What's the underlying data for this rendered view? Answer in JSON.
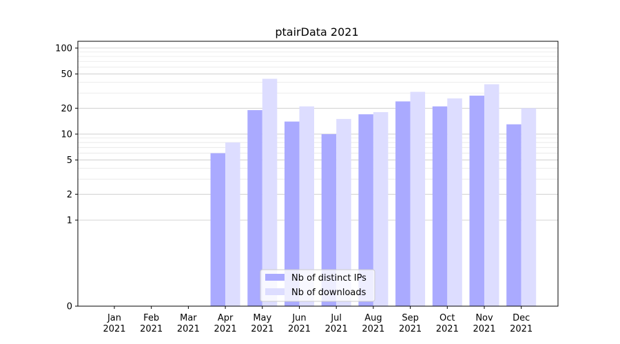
{
  "chart_data": {
    "type": "bar",
    "title": "ptairData 2021",
    "xlabel": "",
    "ylabel": "",
    "y_scale": "symlog",
    "ylim": [
      0,
      120
    ],
    "y_ticks": [
      0,
      1,
      2,
      5,
      10,
      20,
      50,
      100
    ],
    "y_tick_labels": [
      "0",
      "1",
      "2",
      "5",
      "10",
      "20",
      "50",
      "100"
    ],
    "grid": true,
    "legend_position": "bottom-center",
    "categories": [
      "Jan\n2021",
      "Feb\n2021",
      "Mar\n2021",
      "Apr\n2021",
      "May\n2021",
      "Jun\n2021",
      "Jul\n2021",
      "Aug\n2021",
      "Sep\n2021",
      "Oct\n2021",
      "Nov\n2021",
      "Dec\n2021"
    ],
    "series": [
      {
        "name": "Nb of distinct IPs",
        "color": "#aaaaff",
        "values": [
          0,
          0,
          0,
          6,
          19,
          14,
          10,
          17,
          24,
          21,
          28,
          13
        ]
      },
      {
        "name": "Nb of downloads",
        "color": "#ddddff",
        "values": [
          0,
          0,
          0,
          8,
          44,
          21,
          15,
          18,
          31,
          26,
          38,
          20
        ]
      }
    ]
  }
}
